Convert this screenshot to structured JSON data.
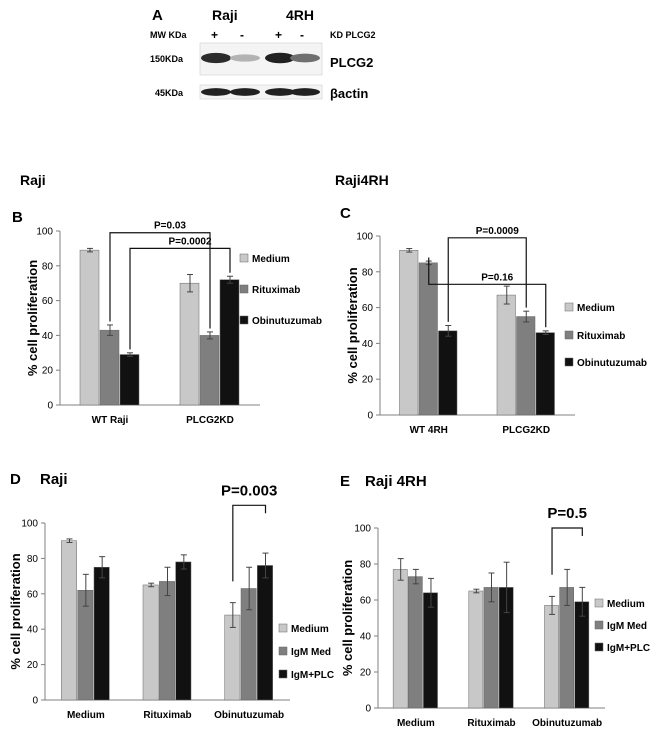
{
  "western_blot": {
    "panel_letter": "A",
    "cell_lines": [
      "Raji",
      "4RH"
    ],
    "mw_header": "MW KDa",
    "kd_header": "KD PLCG2",
    "lane_signs": [
      "+",
      "-",
      "+",
      "-"
    ],
    "bands": [
      {
        "mw": "150KDa",
        "protein": "PLCG2",
        "intensities": [
          0.85,
          0.25,
          0.9,
          0.55
        ]
      },
      {
        "mw": "45KDa",
        "protein": "βactin",
        "intensities": [
          0.9,
          0.9,
          0.9,
          0.9
        ]
      }
    ]
  },
  "chart_data": [
    {
      "id": "B",
      "type": "bar",
      "panel_letter": "B",
      "title": "Raji",
      "ylabel": "% cell proliferation",
      "ylim": [
        0,
        100
      ],
      "yticks": [
        0,
        20,
        40,
        60,
        80,
        100
      ],
      "categories": [
        "WT Raji",
        "PLCG2KD"
      ],
      "series": [
        {
          "name": "Medium",
          "values": [
            89,
            70
          ],
          "errors": [
            1,
            5
          ],
          "color": "#c8c8c8"
        },
        {
          "name": "Rituximab",
          "values": [
            43,
            40
          ],
          "errors": [
            3,
            2
          ],
          "color": "#7f7f7f"
        },
        {
          "name": "Obinutuzumab",
          "values": [
            29,
            72
          ],
          "errors": [
            1,
            2
          ],
          "color": "#111111"
        }
      ],
      "legend": "right",
      "annotations": [
        {
          "text": "P=0.03",
          "from": [
            0,
            1
          ],
          "to": [
            1,
            1
          ],
          "bracket_y": 99
        },
        {
          "text": "P=0.0002",
          "from": [
            0,
            2
          ],
          "to": [
            1,
            2
          ],
          "bracket_y": 90
        }
      ]
    },
    {
      "id": "C",
      "type": "bar",
      "panel_letter": "C",
      "title": "Raji4RH",
      "ylabel": "% cell proliferation",
      "ylim": [
        0,
        100
      ],
      "yticks": [
        0,
        20,
        40,
        60,
        80,
        100
      ],
      "categories": [
        "WT 4RH",
        "PLCG2KD"
      ],
      "series": [
        {
          "name": "Medium",
          "values": [
            92,
            67
          ],
          "errors": [
            1,
            5
          ],
          "color": "#c8c8c8"
        },
        {
          "name": "Rituximab",
          "values": [
            85,
            55
          ],
          "errors": [
            1,
            3
          ],
          "color": "#7f7f7f"
        },
        {
          "name": "Obinutuzumab",
          "values": [
            47,
            46
          ],
          "errors": [
            3,
            1
          ],
          "color": "#111111"
        }
      ],
      "legend": "right",
      "annotations": [
        {
          "text": "P=0.0009",
          "from": [
            0,
            2
          ],
          "to": [
            1,
            1
          ],
          "bracket_y": 99
        },
        {
          "text": "P=0.16",
          "from": [
            0,
            1
          ],
          "to": [
            1,
            2
          ],
          "bracket_y": 73
        }
      ]
    },
    {
      "id": "D",
      "type": "bar",
      "panel_letter": "D",
      "title": "Raji",
      "ylabel": "% cell proliferation",
      "ylim": [
        0,
        100
      ],
      "yticks": [
        0,
        20,
        40,
        60,
        80,
        100
      ],
      "categories": [
        "Medium",
        "Rituximab",
        "Obinutuzumab"
      ],
      "series": [
        {
          "name": "Medium",
          "values": [
            90,
            65,
            48
          ],
          "errors": [
            1,
            1,
            7
          ],
          "color": "#c8c8c8"
        },
        {
          "name": "IgM Med",
          "values": [
            62,
            67,
            63
          ],
          "errors": [
            9,
            8,
            12
          ],
          "color": "#7f7f7f"
        },
        {
          "name": "IgM+PLC",
          "values": [
            75,
            78,
            76
          ],
          "errors": [
            6,
            4,
            7
          ],
          "color": "#111111"
        }
      ],
      "legend": "right",
      "annotations": [
        {
          "text": "P=0.003",
          "from": [
            2,
            0
          ],
          "to": [
            2,
            2
          ],
          "bracket_y": 110
        }
      ]
    },
    {
      "id": "E",
      "type": "bar",
      "panel_letter": "E",
      "title": "Raji 4RH",
      "ylabel": "% cell proliferation",
      "ylim": [
        0,
        100
      ],
      "yticks": [
        0,
        20,
        40,
        60,
        80,
        100
      ],
      "categories": [
        "Medium",
        "Rituximab",
        "Obinutuzumab"
      ],
      "series": [
        {
          "name": "Medium",
          "values": [
            77,
            65,
            57
          ],
          "errors": [
            6,
            1,
            5
          ],
          "color": "#c8c8c8"
        },
        {
          "name": "IgM Med",
          "values": [
            73,
            67,
            67
          ],
          "errors": [
            4,
            8,
            10
          ],
          "color": "#7f7f7f"
        },
        {
          "name": "IgM+PLC",
          "values": [
            64,
            67,
            59
          ],
          "errors": [
            8,
            14,
            8
          ],
          "color": "#111111"
        }
      ],
      "legend": "right",
      "annotations": [
        {
          "text": "P=0.5",
          "from": [
            2,
            0
          ],
          "to": [
            2,
            2
          ],
          "bracket_y": 100
        }
      ]
    }
  ]
}
